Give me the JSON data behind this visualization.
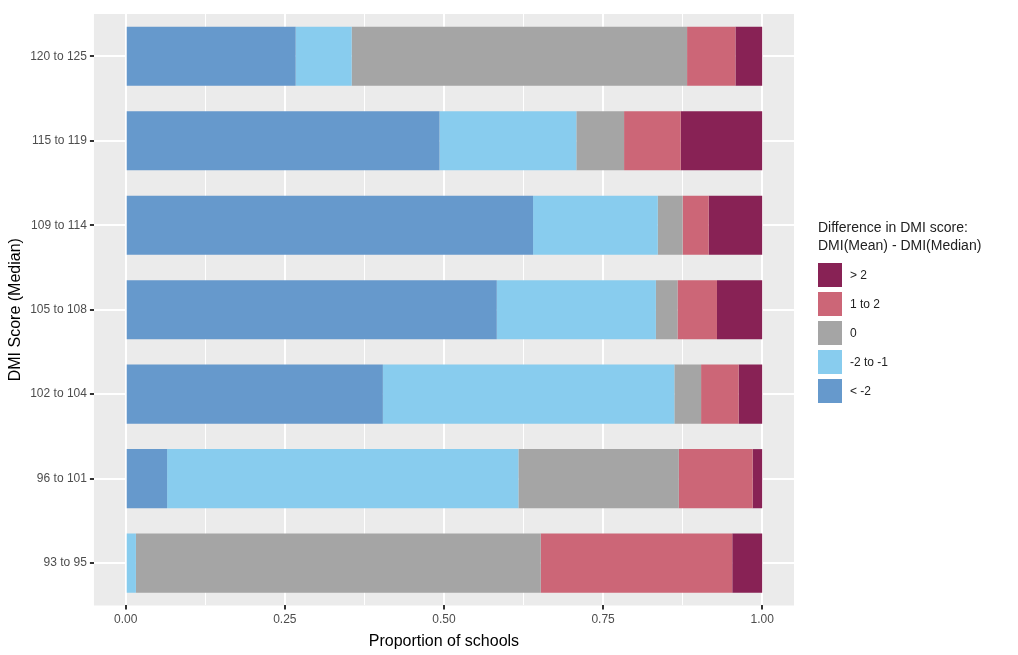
{
  "chart_data": {
    "type": "bar",
    "orientation": "horizontal",
    "stacked": true,
    "xlabel": "Proportion of schools",
    "ylabel": "DMI Score (Median)",
    "legend_title": "Difference in DMI score: DMI(Mean) - DMI(Median)",
    "legend": "right",
    "grid": true,
    "categories": [
      "120 to 125",
      "115 to 119",
      "109 to 114",
      "105 to 108",
      "102 to 104",
      "96 to 101",
      "93 to 95"
    ],
    "xlim": [
      -0.05,
      1.05
    ],
    "xticks": [
      {
        "value": 0,
        "label": "0.00"
      },
      {
        "value": 0.125,
        "label": null
      },
      {
        "value": 0.25,
        "label": "0.25"
      },
      {
        "value": 0.375,
        "label": null
      },
      {
        "value": 0.5,
        "label": "0.50"
      },
      {
        "value": 0.625,
        "label": null
      },
      {
        "value": 0.75,
        "label": "0.75"
      },
      {
        "value": 0.875,
        "label": null
      },
      {
        "value": 1,
        "label": "1.00"
      }
    ],
    "series": [
      {
        "name": "< -2",
        "color": "#6699cc",
        "values": [
          0.267,
          0.493,
          0.64,
          0.583,
          0.404,
          0.065,
          0
        ]
      },
      {
        "name": "-2 to -1",
        "color": "#88ccee",
        "values": [
          0.088,
          0.215,
          0.196,
          0.25,
          0.458,
          0.552,
          0.016
        ]
      },
      {
        "name": "0",
        "color": "#a5a5a5",
        "values": [
          0.527,
          0.075,
          0.039,
          0.034,
          0.042,
          0.252,
          0.636
        ]
      },
      {
        "name": "1 to 2",
        "color": "#cc6677",
        "values": [
          0.076,
          0.089,
          0.041,
          0.062,
          0.059,
          0.116,
          0.301
        ]
      },
      {
        "name": "> 2",
        "color": "#882255",
        "values": [
          0.042,
          0.128,
          0.084,
          0.071,
          0.037,
          0.015,
          0.047
        ]
      }
    ]
  }
}
